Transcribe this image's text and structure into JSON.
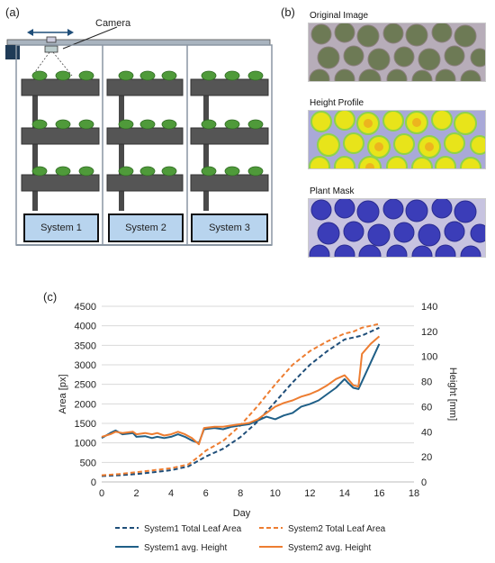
{
  "panels": {
    "a": "(a)",
    "b": "(b)",
    "c": "(c)"
  },
  "rack": {
    "camera_label": "Camera",
    "systems": [
      "System 1",
      "System 2",
      "System 3"
    ]
  },
  "images": {
    "original_caption": "Original Image",
    "height_caption": "Height Profile",
    "mask_caption": "Plant Mask"
  },
  "chart_data": {
    "type": "line",
    "xlabel": "Day",
    "ylabel_left": "Area [px]",
    "ylabel_right": "Height [mm]",
    "xlim": [
      0,
      18
    ],
    "xticks": [
      0,
      2,
      4,
      6,
      8,
      10,
      12,
      14,
      16,
      18
    ],
    "ylim_left": [
      0,
      4500
    ],
    "yticks_left": [
      0,
      500,
      1000,
      1500,
      2000,
      2500,
      3000,
      3500,
      4000,
      4500
    ],
    "ylim_right": [
      0,
      140
    ],
    "yticks_right": [
      0,
      20,
      40,
      60,
      80,
      100,
      120,
      140
    ],
    "grid": "horizontal",
    "legend_position": "bottom",
    "series": [
      {
        "name": "System1 Total Leaf Area",
        "axis": "left",
        "style": "dashed",
        "color": "#1f4e79",
        "x": [
          0,
          1,
          2,
          3,
          4,
          5,
          5.6,
          6,
          7,
          8,
          9,
          10,
          11,
          12,
          13,
          14,
          14.5,
          15,
          15.5,
          16
        ],
        "y": [
          150,
          170,
          200,
          250,
          300,
          400,
          550,
          650,
          850,
          1150,
          1550,
          2050,
          2550,
          3000,
          3350,
          3650,
          3700,
          3750,
          3850,
          3950
        ]
      },
      {
        "name": "System2 Total Leaf Area",
        "axis": "left",
        "style": "dashed",
        "color": "#ed7d31",
        "x": [
          0,
          1,
          2,
          3,
          4,
          5,
          5.6,
          6,
          7,
          8,
          9,
          10,
          11,
          12,
          13,
          14,
          14.5,
          15,
          15.5,
          16
        ],
        "y": [
          170,
          200,
          250,
          300,
          350,
          450,
          650,
          800,
          1050,
          1450,
          1950,
          2500,
          3000,
          3350,
          3600,
          3800,
          3850,
          3950,
          4000,
          4050
        ]
      },
      {
        "name": "System1 avg. Height",
        "axis": "right",
        "style": "solid",
        "color": "#1f5f87",
        "x": [
          0,
          0.5,
          0.8,
          1.2,
          1.8,
          2.0,
          2.5,
          2.9,
          3.2,
          3.6,
          4.0,
          4.4,
          4.8,
          5.2,
          5.6,
          5.9,
          6.5,
          7,
          7.5,
          8,
          8.5,
          9,
          9.5,
          10,
          10.5,
          11,
          11.5,
          12,
          12.5,
          13,
          13.5,
          14,
          14.2,
          14.5,
          14.8,
          15.0,
          15.5,
          16
        ],
        "y": [
          35,
          39,
          41,
          38,
          39,
          36,
          36.5,
          35,
          36,
          35,
          36,
          38,
          36,
          33,
          31,
          42,
          43,
          42,
          44,
          45,
          46,
          49,
          52,
          50,
          53,
          55,
          60,
          62,
          65,
          70,
          75,
          82,
          79,
          75,
          74,
          80,
          95,
          110
        ]
      },
      {
        "name": "System2 avg. Height",
        "axis": "right",
        "style": "solid",
        "color": "#ed7d31",
        "x": [
          0,
          0.5,
          0.8,
          1.2,
          1.8,
          2.0,
          2.5,
          2.9,
          3.2,
          3.6,
          4.0,
          4.4,
          4.8,
          5.2,
          5.6,
          5.9,
          6.5,
          7,
          7.5,
          8,
          8.5,
          9,
          9.5,
          10,
          10.5,
          11,
          11.5,
          12,
          12.5,
          13,
          13.5,
          14,
          14.2,
          14.5,
          14.8,
          15.0,
          15.5,
          16
        ],
        "y": [
          36,
          38,
          40,
          39,
          40,
          38,
          39,
          38,
          39,
          37,
          38,
          40,
          38,
          35,
          30,
          43,
          44,
          44,
          45,
          46,
          47,
          50,
          55,
          60,
          63,
          65,
          68,
          70,
          73,
          77,
          82,
          85,
          82,
          77,
          76,
          102,
          110,
          116
        ]
      }
    ]
  }
}
